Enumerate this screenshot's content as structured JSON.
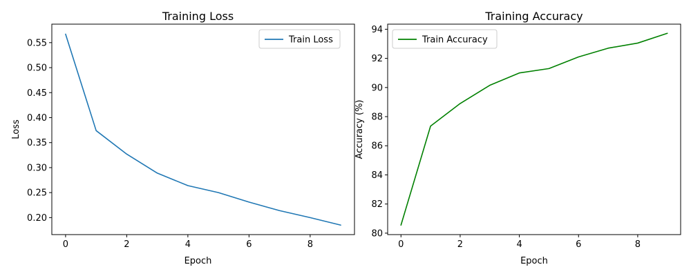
{
  "chart_data": [
    {
      "type": "line",
      "title": "Training Loss",
      "xlabel": "Epoch",
      "ylabel": "Loss",
      "x": [
        0,
        1,
        2,
        3,
        4,
        5,
        6,
        7,
        8,
        9
      ],
      "xlim": [
        -0.45,
        9.45
      ],
      "ylim": [
        0.166,
        0.587
      ],
      "xticks": [
        0,
        2,
        4,
        6,
        8
      ],
      "yticks": [
        0.2,
        0.25,
        0.3,
        0.35,
        0.4,
        0.45,
        0.5,
        0.55
      ],
      "xtick_labels": [
        "0",
        "2",
        "4",
        "6",
        "8"
      ],
      "ytick_labels": [
        "0.20",
        "0.25",
        "0.30",
        "0.35",
        "0.40",
        "0.45",
        "0.50",
        "0.55"
      ],
      "grid": false,
      "legend": "upper-right",
      "series": [
        {
          "name": "Train Loss",
          "color": "#1f77b4",
          "values": [
            0.567,
            0.374,
            0.327,
            0.289,
            0.264,
            0.25,
            0.231,
            0.214,
            0.2,
            0.185
          ]
        }
      ]
    },
    {
      "type": "line",
      "title": "Training Accuracy",
      "xlabel": "Epoch",
      "ylabel": "Accuracy (%)",
      "x": [
        0,
        1,
        2,
        3,
        4,
        5,
        6,
        7,
        8,
        9
      ],
      "xlim": [
        -0.45,
        9.45
      ],
      "ylim": [
        79.9,
        94.35
      ],
      "xticks": [
        0,
        2,
        4,
        6,
        8
      ],
      "yticks": [
        80,
        82,
        84,
        86,
        88,
        90,
        92,
        94
      ],
      "xtick_labels": [
        "0",
        "2",
        "4",
        "6",
        "8"
      ],
      "ytick_labels": [
        "80",
        "82",
        "84",
        "86",
        "88",
        "90",
        "92",
        "94"
      ],
      "grid": false,
      "legend": "upper-left",
      "series": [
        {
          "name": "Train Accuracy",
          "color": "#008000",
          "values": [
            80.55,
            87.35,
            88.9,
            90.15,
            91.0,
            91.3,
            92.1,
            92.7,
            93.05,
            93.72
          ]
        }
      ]
    }
  ]
}
